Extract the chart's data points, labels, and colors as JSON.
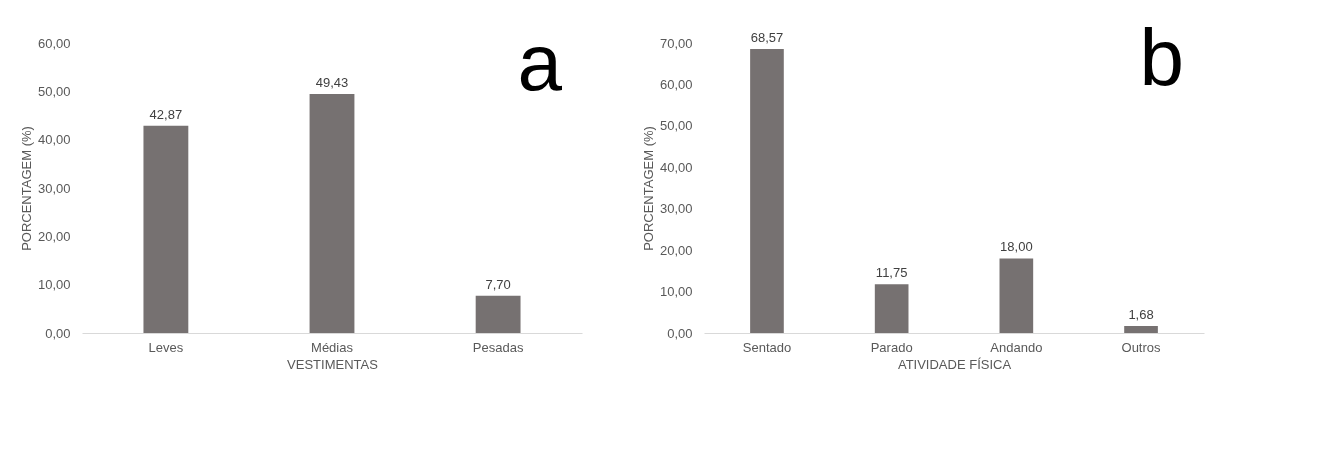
{
  "chart_data": [
    {
      "type": "bar",
      "title": "a",
      "categories": [
        "Leves",
        "Médias",
        "Pesadas"
      ],
      "values": [
        42.87,
        49.43,
        7.7
      ],
      "color": "#767171",
      "value_labels": [
        "42,87",
        "49,43",
        "7,70"
      ],
      "xlabel": "VESTIMENTAS",
      "ylabel": "PORCENTAGEM (%)",
      "ylim": [
        0,
        60
      ],
      "yticks": [
        {
          "value": 0,
          "label": "0,00"
        },
        {
          "value": 10,
          "label": "10,00"
        },
        {
          "value": 20,
          "label": "20,00"
        },
        {
          "value": 30,
          "label": "30,00"
        },
        {
          "value": 40,
          "label": "40,00"
        },
        {
          "value": 50,
          "label": "50,00"
        },
        {
          "value": 60,
          "label": "60,00"
        }
      ],
      "grid": false
    },
    {
      "type": "bar",
      "title": "b",
      "categories": [
        "Sentado",
        "Parado",
        "Andando",
        "Outros"
      ],
      "values": [
        68.57,
        11.75,
        18.0,
        1.68
      ],
      "color": "#767171",
      "value_labels": [
        "68,57",
        "11,75",
        "18,00",
        "1,68"
      ],
      "xlabel": "ATIVIDADE FÍSICA",
      "ylabel": "PORCENTAGEM (%)",
      "ylim": [
        0,
        70
      ],
      "yticks": [
        {
          "value": 0,
          "label": "0,00"
        },
        {
          "value": 10,
          "label": "10,00"
        },
        {
          "value": 20,
          "label": "20,00"
        },
        {
          "value": 30,
          "label": "30,00"
        },
        {
          "value": 40,
          "label": "40,00"
        },
        {
          "value": 50,
          "label": "50,00"
        },
        {
          "value": 60,
          "label": "60,00"
        },
        {
          "value": 70,
          "label": "70,00"
        }
      ],
      "grid": false
    }
  ]
}
